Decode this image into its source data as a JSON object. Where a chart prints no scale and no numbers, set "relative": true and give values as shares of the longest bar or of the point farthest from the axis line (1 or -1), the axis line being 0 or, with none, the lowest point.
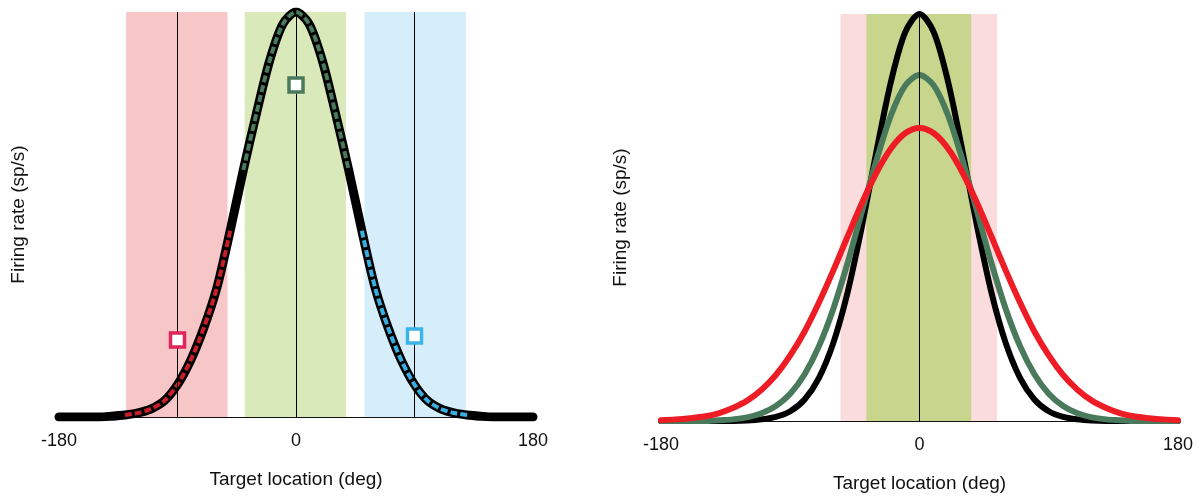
{
  "chart_data": [
    {
      "type": "line",
      "relative": true,
      "xlabel": "Target location (deg)",
      "ylabel": "Firing rate (sp/s)",
      "xlim": [
        -180,
        180
      ],
      "xticks": [
        -180,
        0,
        180
      ],
      "tick_labels": "x",
      "grid": false,
      "bands": [
        {
          "axis": "x",
          "from": -129,
          "to": -52,
          "color": "#f7c6c6"
        },
        {
          "axis": "x",
          "from": -39,
          "to": 38,
          "color": "#d9e9ba"
        },
        {
          "axis": "x",
          "from": 52,
          "to": 129,
          "color": "#d6eefa"
        }
      ],
      "ref_lines": [
        {
          "axis": "x",
          "value": -90,
          "color": "#000000"
        },
        {
          "axis": "x",
          "value": 0,
          "color": "#000000"
        },
        {
          "axis": "x",
          "value": 90,
          "color": "#000000"
        }
      ],
      "series": [
        {
          "color": "#000000",
          "line_style": "solid",
          "marker": "none",
          "x": [
            -180,
            -170,
            -160,
            -150,
            -140,
            -130,
            -120,
            -110,
            -100,
            -90,
            -80,
            -70,
            -60,
            -50,
            -40,
            -30,
            -20,
            -10,
            0,
            10,
            20,
            30,
            40,
            50,
            60,
            70,
            80,
            90,
            100,
            110,
            120,
            130,
            140,
            150,
            160,
            170,
            180
          ],
          "values": [
            0,
            0,
            0,
            0,
            0.002,
            0.005,
            0.01,
            0.02,
            0.04,
            0.08,
            0.14,
            0.22,
            0.32,
            0.46,
            0.61,
            0.75,
            0.88,
            0.97,
            1,
            0.97,
            0.88,
            0.75,
            0.61,
            0.46,
            0.32,
            0.22,
            0.14,
            0.08,
            0.04,
            0.02,
            0.01,
            0.005,
            0.002,
            0,
            0,
            0,
            0
          ]
        },
        {
          "color": "#c8202a",
          "line_style": "dashed",
          "marker": "none",
          "x": [
            -130,
            -120,
            -110,
            -100,
            -90,
            -80,
            -70,
            -60,
            -50
          ],
          "values": [
            0.005,
            0.01,
            0.02,
            0.04,
            0.08,
            0.14,
            0.22,
            0.32,
            0.46
          ]
        },
        {
          "color": "#4a7a5c",
          "line_style": "dashed",
          "marker": "none",
          "x": [
            -40,
            -30,
            -20,
            -10,
            0,
            10,
            20,
            30,
            40
          ],
          "values": [
            0.61,
            0.75,
            0.88,
            0.97,
            1,
            0.97,
            0.88,
            0.75,
            0.61
          ]
        },
        {
          "color": "#3aaee0",
          "line_style": "dashed",
          "marker": "none",
          "x": [
            50,
            60,
            70,
            80,
            90,
            100,
            110,
            120,
            130
          ],
          "values": [
            0.46,
            0.32,
            0.22,
            0.14,
            0.08,
            0.04,
            0.02,
            0.01,
            0.005
          ]
        },
        {
          "type": "scatter",
          "color": "#e0245e",
          "marker": "square",
          "x": [
            -90
          ],
          "values": [
            0.19
          ]
        },
        {
          "type": "scatter",
          "color": "#4a7a5c",
          "marker": "square",
          "x": [
            0
          ],
          "values": [
            0.82
          ]
        },
        {
          "type": "scatter",
          "color": "#3db4e8",
          "marker": "square",
          "x": [
            90
          ],
          "values": [
            0.2
          ]
        }
      ]
    },
    {
      "type": "line",
      "relative": true,
      "xlabel": "Target location (deg)",
      "ylabel": "Firing rate (sp/s)",
      "xlim": [
        -180,
        180
      ],
      "xticks": [
        -180,
        0,
        180
      ],
      "tick_labels": "x",
      "grid": false,
      "bands": [
        {
          "axis": "x",
          "from": -55,
          "to": 54,
          "color": "#fbdcdd"
        },
        {
          "axis": "x",
          "from": -37,
          "to": 36,
          "color": "#c8d58c"
        }
      ],
      "ref_lines": [
        {
          "axis": "x",
          "value": 0,
          "color": "#000000"
        }
      ],
      "series": [
        {
          "color": "#000000",
          "line_style": "solid",
          "marker": "none",
          "x": [
            -180,
            -170,
            -160,
            -150,
            -140,
            -130,
            -120,
            -110,
            -100,
            -90,
            -80,
            -70,
            -60,
            -50,
            -40,
            -30,
            -20,
            -10,
            0,
            10,
            20,
            30,
            40,
            50,
            60,
            70,
            80,
            90,
            100,
            110,
            120,
            130,
            140,
            150,
            160,
            170,
            180
          ],
          "values": [
            0,
            0,
            0,
            0,
            0,
            0,
            0.001,
            0.004,
            0.01,
            0.024,
            0.053,
            0.106,
            0.192,
            0.317,
            0.48,
            0.662,
            0.832,
            0.955,
            1,
            0.955,
            0.832,
            0.662,
            0.48,
            0.317,
            0.192,
            0.106,
            0.053,
            0.024,
            0.01,
            0.004,
            0.001,
            0,
            0,
            0,
            0,
            0,
            0
          ]
        },
        {
          "color": "#4a7a5c",
          "line_style": "solid",
          "marker": "none",
          "x": [
            -180,
            -170,
            -160,
            -150,
            -140,
            -130,
            -120,
            -110,
            -100,
            -90,
            -80,
            -70,
            -60,
            -50,
            -40,
            -30,
            -20,
            -10,
            0,
            10,
            20,
            30,
            40,
            50,
            60,
            70,
            80,
            90,
            100,
            110,
            120,
            130,
            140,
            150,
            160,
            170,
            180
          ],
          "values": [
            0,
            0,
            0,
            0,
            0.002,
            0.004,
            0.009,
            0.019,
            0.037,
            0.067,
            0.115,
            0.184,
            0.276,
            0.389,
            0.516,
            0.64,
            0.75,
            0.824,
            0.85,
            0.824,
            0.75,
            0.64,
            0.516,
            0.389,
            0.276,
            0.184,
            0.115,
            0.067,
            0.037,
            0.019,
            0.009,
            0.004,
            0.002,
            0,
            0,
            0,
            0
          ]
        },
        {
          "color": "#ee1c25",
          "line_style": "solid",
          "marker": "none",
          "x": [
            -180,
            -170,
            -160,
            -150,
            -140,
            -130,
            -120,
            -110,
            -100,
            -90,
            -80,
            -70,
            -60,
            -50,
            -40,
            -30,
            -20,
            -10,
            0,
            10,
            20,
            30,
            40,
            50,
            60,
            70,
            80,
            90,
            100,
            110,
            120,
            130,
            140,
            150,
            160,
            170,
            180
          ],
          "values": [
            0.002,
            0.004,
            0.007,
            0.011,
            0.019,
            0.032,
            0.05,
            0.077,
            0.113,
            0.161,
            0.22,
            0.291,
            0.37,
            0.454,
            0.536,
            0.61,
            0.669,
            0.707,
            0.72,
            0.707,
            0.669,
            0.61,
            0.536,
            0.454,
            0.37,
            0.291,
            0.22,
            0.161,
            0.113,
            0.077,
            0.05,
            0.032,
            0.019,
            0.011,
            0.007,
            0.004,
            0.002
          ]
        }
      ]
    }
  ]
}
